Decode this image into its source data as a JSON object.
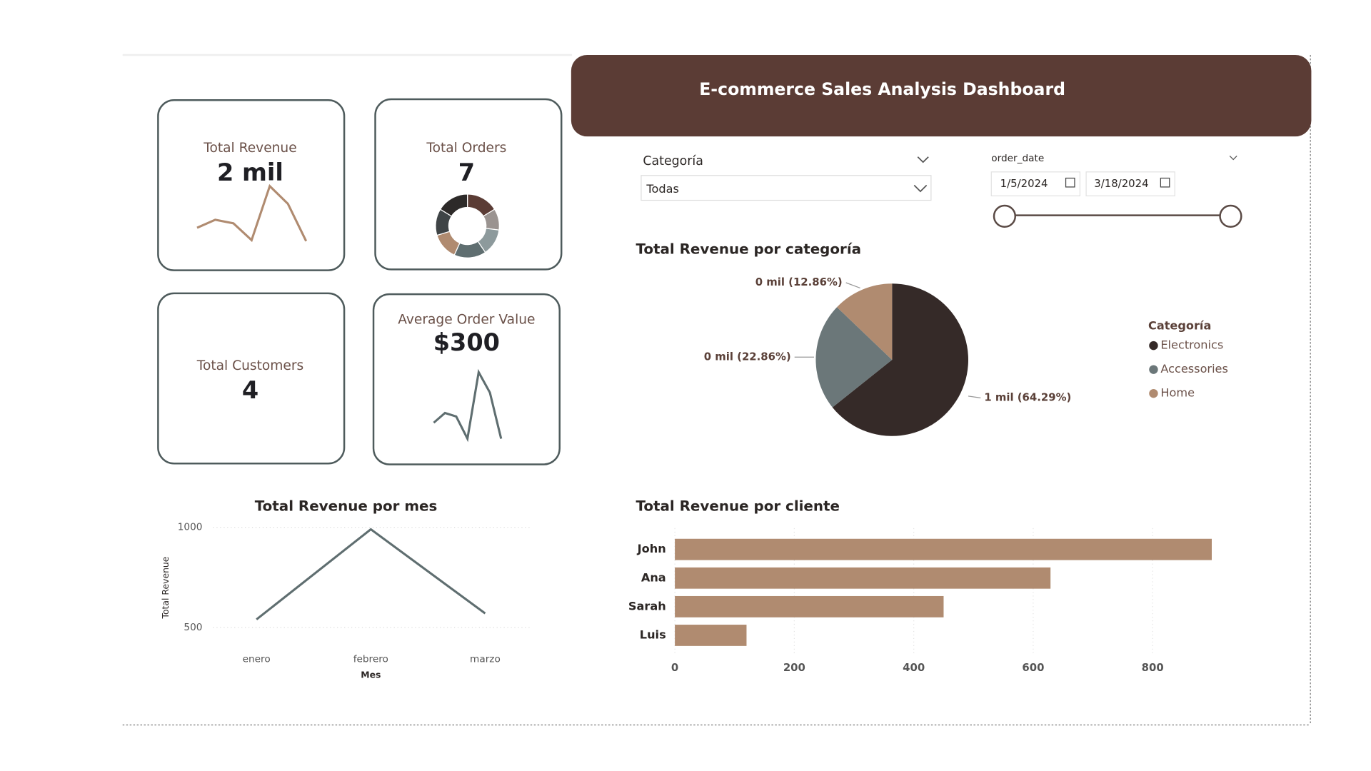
{
  "header": {
    "title": "E-commerce Sales Analysis Dashboard"
  },
  "kpis": [
    {
      "label": "Total Revenue",
      "value": "2 mil",
      "trend": {
        "values": [
          43,
          52,
          48,
          29,
          90,
          70,
          28
        ],
        "color": "#b08b70"
      }
    },
    {
      "label": "Total Orders",
      "value": "7",
      "donut": {
        "values": [
          300,
          200,
          250,
          300,
          250,
          250,
          300
        ],
        "colors": [
          "#5b3c35",
          "#9a9390",
          "#8d9a9c",
          "#5f6e70",
          "#b08b70",
          "#3f4446",
          "#2d2a29"
        ]
      }
    },
    {
      "label": "Total Customers",
      "value": "4"
    },
    {
      "label": "Average Order Value",
      "value": "$300",
      "trend": {
        "values": [
          43,
          54,
          50,
          25,
          100,
          77,
          25
        ],
        "color": "#5f6e70"
      }
    }
  ],
  "filters": {
    "category": {
      "label": "Categoría",
      "selected": "Todas"
    },
    "order_date": {
      "label": "order_date",
      "start": "1/5/2024",
      "end": "3/18/2024"
    }
  },
  "chart_data": [
    {
      "type": "pie",
      "title": "Total Revenue por categoría",
      "legend_title": "Categoría",
      "legend": "right",
      "categories": [
        "Electronics",
        "Accessories",
        "Home"
      ],
      "values": [
        64.29,
        22.86,
        12.86
      ],
      "value_labels": [
        "1 mil (64.29%)",
        "0 mil (22.86%)",
        "0 mil (12.86%)"
      ],
      "colors": [
        "#352a28",
        "#6b7779",
        "#b08b70"
      ]
    },
    {
      "type": "line",
      "title": "Total Revenue por mes",
      "x_label": "Mes",
      "y_label": "Total Revenue",
      "categories": [
        "enero",
        "febrero",
        "marzo"
      ],
      "values": [
        540,
        990,
        570
      ],
      "color": "#5f6e70",
      "ylim": [
        500,
        1000
      ],
      "yticks": [
        500,
        1000
      ],
      "grid": true
    },
    {
      "type": "hbar",
      "title": "Total Revenue por cliente",
      "categories": [
        "John",
        "Ana",
        "Sarah",
        "Luis"
      ],
      "values": [
        899,
        629,
        450,
        120
      ],
      "color": "#b08b70",
      "xlim": [
        0,
        900
      ],
      "xticks": [
        0,
        200,
        400,
        600,
        800
      ],
      "grid": true
    }
  ]
}
